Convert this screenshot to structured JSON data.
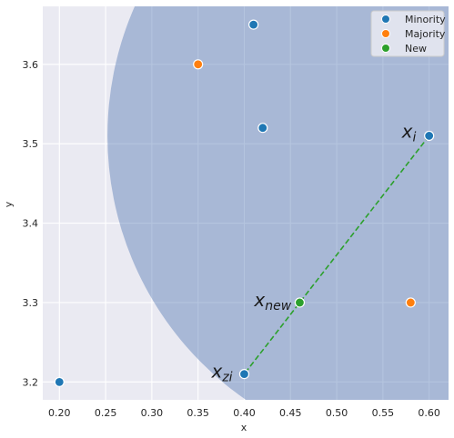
{
  "chart_data": {
    "type": "scatter",
    "xlabel": "x",
    "ylabel": "y",
    "xlim": [
      0.182,
      0.621
    ],
    "ylim": [
      3.1775,
      3.673
    ],
    "x_ticks": [
      "0.20",
      "0.25",
      "0.30",
      "0.35",
      "0.40",
      "0.45",
      "0.50",
      "0.55",
      "0.60"
    ],
    "y_ticks": [
      "3.2",
      "3.3",
      "3.4",
      "3.5",
      "3.6"
    ],
    "grid": true,
    "legend_position": "top-right",
    "series": [
      {
        "name": "Minority",
        "color": "#1f77b4",
        "points": [
          [
            0.41,
            3.65
          ],
          [
            0.42,
            3.52
          ],
          [
            0.6,
            3.51
          ],
          [
            0.4,
            3.21
          ],
          [
            0.2,
            3.2
          ]
        ]
      },
      {
        "name": "Majority",
        "color": "#ff7f0e",
        "points": [
          [
            0.35,
            3.6
          ],
          [
            0.58,
            3.3
          ]
        ]
      },
      {
        "name": "New",
        "color": "#2ca02c",
        "points": [
          [
            0.46,
            3.3
          ]
        ]
      }
    ],
    "circle": {
      "center": [
        0.6,
        3.51
      ],
      "radius_x": 0.348,
      "color": "#4c72b0",
      "opacity": 0.42
    },
    "segment": {
      "from": [
        0.6,
        3.51
      ],
      "to": [
        0.4,
        3.21
      ],
      "color": "#2ca02c",
      "style": "dashed"
    },
    "annotations": [
      {
        "base": "x",
        "sub": "i",
        "at": [
          0.6,
          3.51
        ]
      },
      {
        "base": "x",
        "sub": "new",
        "at": [
          0.46,
          3.3
        ]
      },
      {
        "base": "x",
        "sub": "zi",
        "at": [
          0.4,
          3.21
        ]
      }
    ]
  }
}
